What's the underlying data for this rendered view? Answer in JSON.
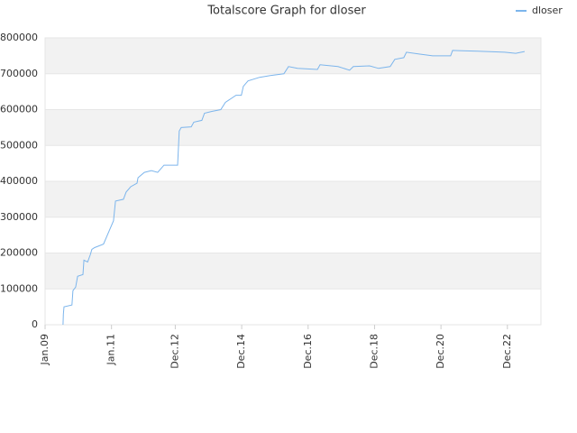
{
  "chart_data": {
    "type": "line",
    "title": "Totalscore Graph for dloser",
    "x": [
      2009.54,
      2009.55,
      2009.57,
      2009.81,
      2009.84,
      2009.92,
      2009.98,
      2010.14,
      2010.17,
      2010.28,
      2010.36,
      2010.41,
      2010.49,
      2010.76,
      2011.06,
      2011.12,
      2011.36,
      2011.44,
      2011.58,
      2011.77,
      2011.8,
      2011.99,
      2012.2,
      2012.39,
      2012.58,
      2012.99,
      2013.04,
      2013.1,
      2013.4,
      2013.48,
      2013.72,
      2013.8,
      2014.02,
      2014.29,
      2014.43,
      2014.75,
      2014.91,
      2014.97,
      2015.11,
      2015.46,
      2015.78,
      2016.19,
      2016.33,
      2016.6,
      2017.2,
      2017.28,
      2017.82,
      2018.17,
      2018.28,
      2018.77,
      2019.04,
      2019.39,
      2019.53,
      2019.8,
      2019.88,
      2020.26,
      2020.67,
      2021.21,
      2021.27,
      2022.03,
      2022.84,
      2023.17,
      2023.44
    ],
    "series": [
      {
        "name": "dloser",
        "color": "#7cb5ec",
        "values": [
          0,
          30000,
          50000,
          55000,
          95000,
          105000,
          135000,
          140000,
          180000,
          175000,
          195000,
          210000,
          215000,
          225000,
          290000,
          345000,
          350000,
          370000,
          385000,
          395000,
          410000,
          425000,
          430000,
          425000,
          445000,
          445000,
          540000,
          550000,
          552000,
          565000,
          570000,
          590000,
          595000,
          600000,
          620000,
          640000,
          640000,
          665000,
          680000,
          690000,
          695000,
          700000,
          720000,
          715000,
          712000,
          725000,
          720000,
          710000,
          720000,
          722000,
          715000,
          720000,
          740000,
          745000,
          760000,
          755000,
          750000,
          750000,
          765000,
          763000,
          760000,
          757000,
          762000
        ]
      }
    ],
    "xlim": [
      2009,
      2023.93
    ],
    "xticks": [
      {
        "value": 2009,
        "label": "Jan.09"
      },
      {
        "value": 2011,
        "label": "Jan.11"
      },
      {
        "value": 2012.92,
        "label": "Dec.12"
      },
      {
        "value": 2014.92,
        "label": "Dec.14"
      },
      {
        "value": 2016.92,
        "label": "Dec.16"
      },
      {
        "value": 2018.92,
        "label": "Dec.18"
      },
      {
        "value": 2020.92,
        "label": "Dec.20"
      },
      {
        "value": 2022.92,
        "label": "Dec.22"
      }
    ],
    "ylim": [
      0,
      800000
    ],
    "yticks": [
      0,
      100000,
      200000,
      300000,
      400000,
      500000,
      600000,
      700000,
      800000
    ],
    "grid": true,
    "legend": "top-right"
  }
}
